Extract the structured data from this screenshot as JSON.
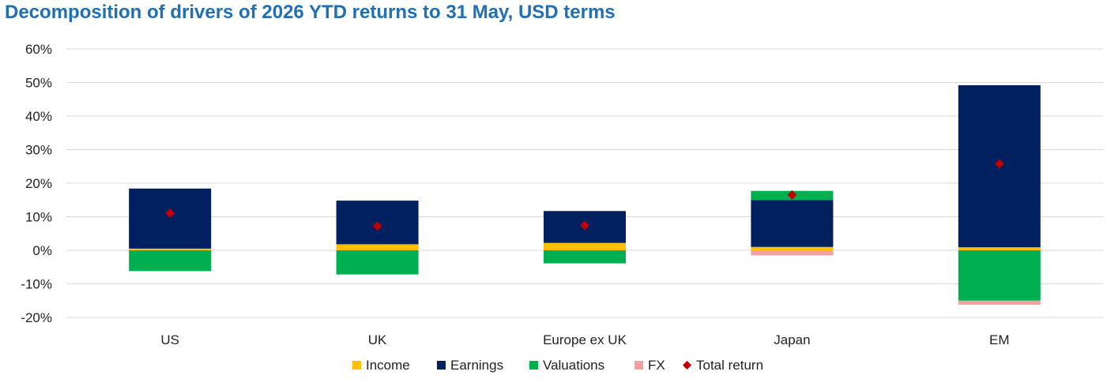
{
  "colors": {
    "Income": "#ffc000",
    "Earnings": "#002060",
    "Valuations": "#00b050",
    "FX": "#f4a0a0",
    "Total return": "#c00000",
    "title": "#1f6fb2",
    "grid": "#d9d9d9"
  },
  "chart_data": {
    "type": "bar",
    "stacked": true,
    "title": "Decomposition of drivers of 2026 YTD returns to 31 May, USD terms",
    "xlabel": "",
    "ylabel": "",
    "ylim": [
      -20,
      60
    ],
    "yticks": [
      "-20%",
      "-10%",
      "0%",
      "10%",
      "20%",
      "30%",
      "40%",
      "50%",
      "60%"
    ],
    "grid": true,
    "legend_position": "bottom",
    "categories": [
      "US",
      "UK",
      "Europe ex UK",
      "Japan",
      "EM"
    ],
    "series": [
      {
        "name": "Income",
        "type": "bar",
        "values": [
          0.5,
          1.8,
          2.2,
          1.0,
          0.9
        ]
      },
      {
        "name": "Earnings",
        "type": "bar",
        "values": [
          17.9,
          13.0,
          9.5,
          14.0,
          48.3
        ]
      },
      {
        "name": "Valuations",
        "type": "bar",
        "values": [
          -6.2,
          -7.2,
          -3.9,
          2.7,
          -15.0
        ]
      },
      {
        "name": "FX",
        "type": "bar",
        "values": [
          0.0,
          0.0,
          0.0,
          -1.5,
          -1.2
        ]
      },
      {
        "name": "Total return",
        "type": "scatter",
        "values": [
          11.1,
          7.2,
          7.4,
          16.5,
          25.8
        ]
      }
    ]
  }
}
